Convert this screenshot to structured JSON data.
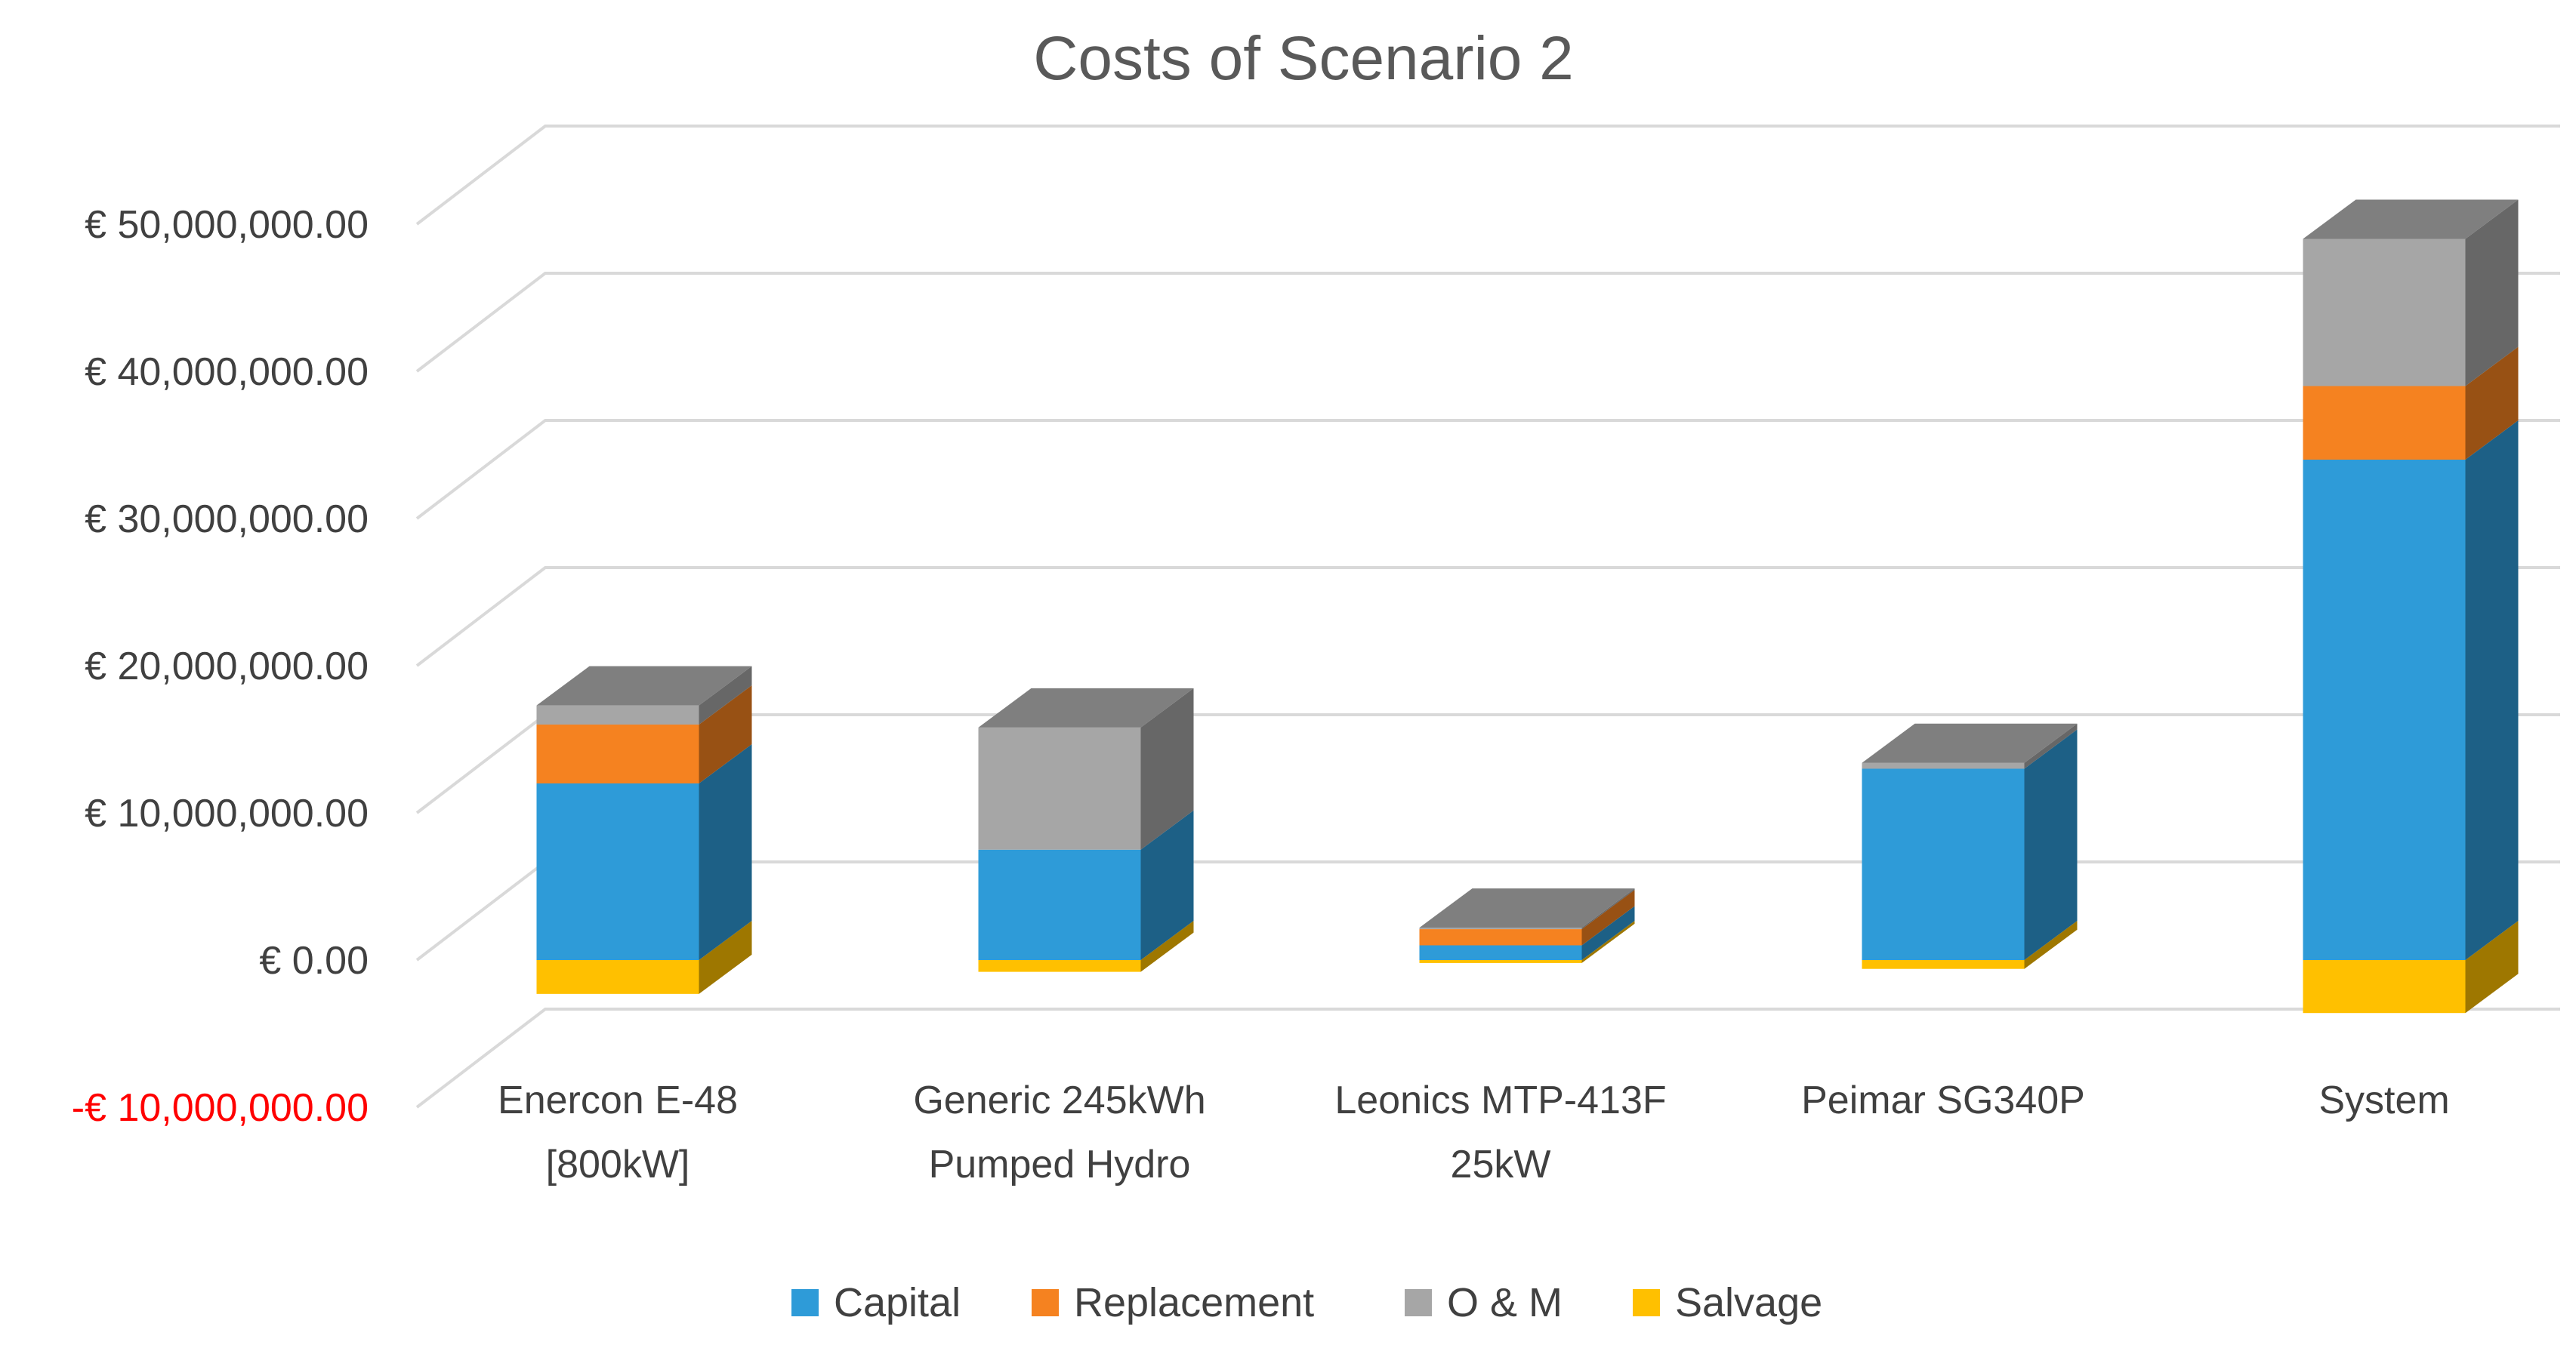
{
  "chart_data": {
    "type": "bar",
    "stacked": true,
    "three_d": true,
    "title": "Costs of Scenario 2",
    "xlabel": "",
    "ylabel": "",
    "ylim": [
      -10000000,
      50000000
    ],
    "y_ticks": [
      -10000000,
      0,
      10000000,
      20000000,
      30000000,
      40000000,
      50000000
    ],
    "y_tick_labels": [
      "-€ 10,000,000.00",
      "€ 0.00",
      "€ 10,000,000.00",
      "€ 20,000,000.00",
      "€ 30,000,000.00",
      "€ 40,000,000.00",
      "€ 50,000,000.00"
    ],
    "grid": true,
    "legend_position": "bottom",
    "categories": [
      [
        "Enercon E-48",
        "[800kW]"
      ],
      [
        "Generic 245kWh",
        "Pumped Hydro"
      ],
      [
        "Leonics MTP-413F",
        "25kW"
      ],
      [
        "Peimar SG340P"
      ],
      [
        "System"
      ]
    ],
    "series": [
      {
        "name": "Capital",
        "color": "#2e9bd8",
        "values": [
          12000000,
          7500000,
          1000000,
          13000000,
          34000000
        ]
      },
      {
        "name": "Replacement",
        "color": "#f58220",
        "values": [
          4000000,
          0,
          1100000,
          0,
          5000000
        ]
      },
      {
        "name": "O & M",
        "color": "#a6a6a6",
        "values": [
          1300000,
          8300000,
          100000,
          400000,
          10000000
        ]
      },
      {
        "name": "Salvage",
        "color": "#ffc000",
        "values": [
          -2300000,
          -800000,
          -200000,
          -600000,
          -3600000
        ]
      }
    ]
  }
}
